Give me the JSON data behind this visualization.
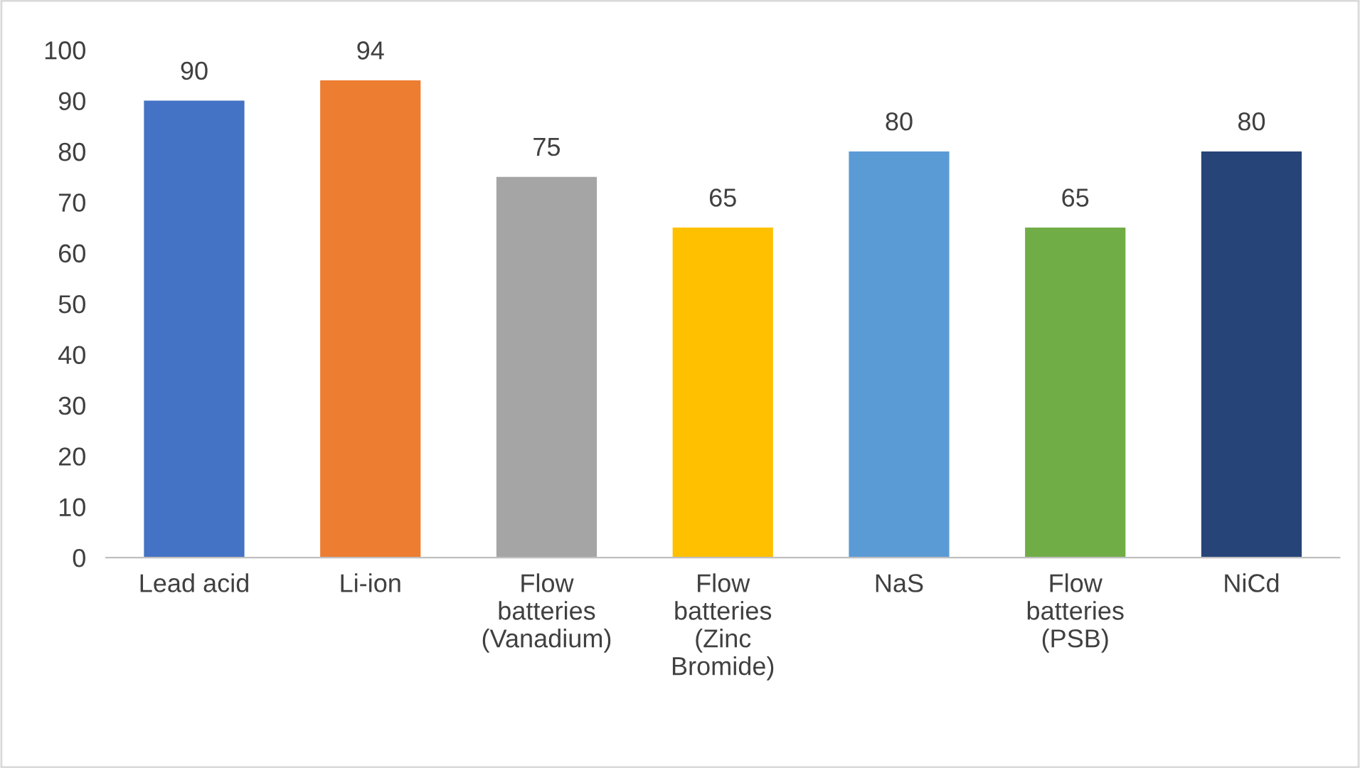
{
  "chart_data": {
    "type": "bar",
    "categories": [
      "Lead acid",
      "Li-ion",
      "Flow\nbatteries\n(Vanadium)",
      "Flow\nbatteries\n(Zinc\nBromide)",
      "NaS",
      "Flow\nbatteries\n(PSB)",
      "NiCd"
    ],
    "values": [
      90,
      94,
      75,
      65,
      80,
      65,
      80
    ],
    "colors": [
      "#4472c4",
      "#ed7d31",
      "#a5a5a5",
      "#ffc000",
      "#5b9bd5",
      "#70ad47",
      "#264478"
    ],
    "ylim": [
      0,
      100
    ],
    "yticks": [
      0,
      10,
      20,
      30,
      40,
      50,
      60,
      70,
      80,
      90,
      100
    ],
    "data_labels": true
  }
}
